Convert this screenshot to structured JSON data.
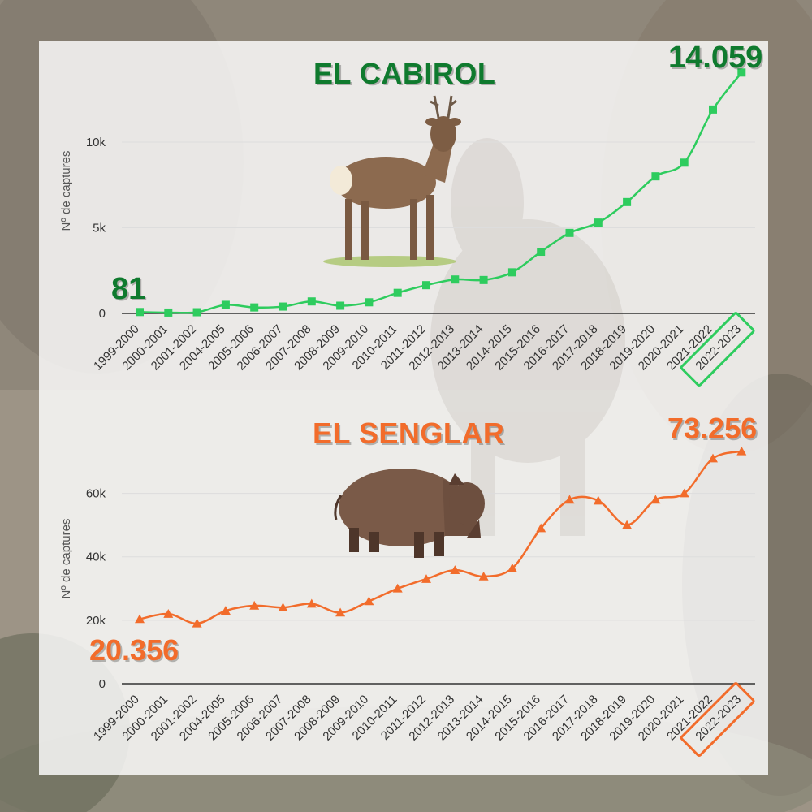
{
  "chart_data": [
    {
      "type": "line",
      "title": "EL CABIROL",
      "ylabel": "Nº de captures",
      "xlabel": "",
      "categories": [
        "1999-2000",
        "2000-2001",
        "2001-2002",
        "2004-2005",
        "2005-2006",
        "2006-2007",
        "2007-2008",
        "2008-2009",
        "2009-2010",
        "2010-2011",
        "2011-2012",
        "2012-2013",
        "2013-2014",
        "2014-2015",
        "2015-2016",
        "2016-2017",
        "2017-2018",
        "2018-2019",
        "2019-2020",
        "2020-2021",
        "2021-2022",
        "2022-2023"
      ],
      "series": [
        {
          "values": [
            81,
            50,
            70,
            500,
            350,
            400,
            700,
            450,
            650,
            1200,
            1650,
            1980,
            1950,
            2400,
            3600,
            4700,
            5300,
            6500,
            8000,
            8800,
            11900,
            14059
          ]
        }
      ],
      "ylim": [
        0,
        14500
      ],
      "yticks": [
        0,
        5000,
        10000
      ],
      "ytick_labels": [
        "0",
        "5k",
        "10k"
      ],
      "grid": true,
      "color": "#2ecc5e",
      "marker": "square",
      "annotations": {
        "start": "81",
        "end": "14.059"
      },
      "highlight_label": "2022-2023"
    },
    {
      "type": "line",
      "title": "EL SENGLAR",
      "ylabel": "Nº de captures",
      "xlabel": "",
      "categories": [
        "1999-2000",
        "2000-2001",
        "2001-2002",
        "2004-2005",
        "2005-2006",
        "2006-2007",
        "2007-2008",
        "2008-2009",
        "2009-2010",
        "2010-2011",
        "2011-2012",
        "2012-2013",
        "2013-2014",
        "2014-2015",
        "2015-2016",
        "2016-2017",
        "2017-2018",
        "2018-2019",
        "2019-2020",
        "2020-2021",
        "2021-2022",
        "2022-2023"
      ],
      "series": [
        {
          "values": [
            20356,
            22000,
            19000,
            23000,
            24600,
            24000,
            25200,
            22400,
            26000,
            30000,
            33000,
            35800,
            33800,
            36400,
            49000,
            58000,
            57700,
            50000,
            58000,
            60000,
            71000,
            73256
          ]
        }
      ],
      "ylim": [
        0,
        75000
      ],
      "yticks": [
        0,
        20000,
        40000,
        60000
      ],
      "ytick_labels": [
        "0",
        "20k",
        "40k",
        "60k"
      ],
      "grid": true,
      "color": "#f26c2b",
      "marker": "triangle",
      "annotations": {
        "start": "20.356",
        "end": "73.256"
      },
      "highlight_label": "2022-2023"
    }
  ],
  "illustrations": {
    "top": "roe-deer",
    "bottom": "wild-boar"
  },
  "background": "rocky-mountain-chamois-photo"
}
